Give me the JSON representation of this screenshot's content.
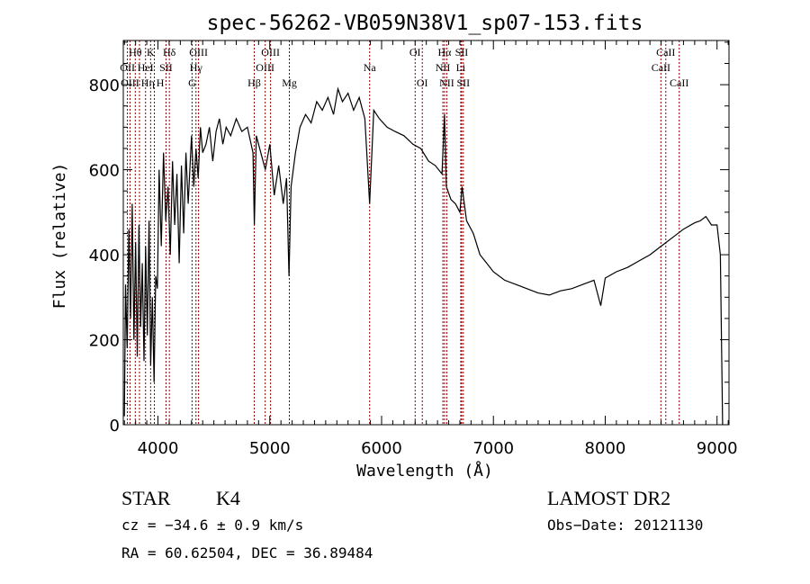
{
  "chart_data": {
    "type": "line",
    "title": "spec-56262-VB059N38V1_sp07-153.fits",
    "xlabel": "Wavelength (Å)",
    "ylabel": "Flux (relative)",
    "xlim": [
      3690,
      9107
    ],
    "ylim": [
      0,
      904
    ],
    "xticks": [
      4000,
      5000,
      6000,
      7000,
      8000,
      9000
    ],
    "yticks": [
      0,
      200,
      400,
      600,
      800
    ],
    "grid": false,
    "line_color": "#000000",
    "marker_color": "#8b0000",
    "series": [
      {
        "name": "spectrum",
        "x": [
          3700,
          3710,
          3725,
          3740,
          3755,
          3770,
          3785,
          3800,
          3815,
          3830,
          3845,
          3860,
          3875,
          3890,
          3905,
          3920,
          3935,
          3950,
          3965,
          3980,
          3995,
          4010,
          4030,
          4050,
          4070,
          4090,
          4110,
          4130,
          4150,
          4170,
          4190,
          4210,
          4230,
          4250,
          4270,
          4300,
          4320,
          4340,
          4360,
          4380,
          4400,
          4430,
          4460,
          4490,
          4520,
          4550,
          4580,
          4610,
          4650,
          4700,
          4750,
          4800,
          4850,
          4862,
          4880,
          4920,
          4960,
          5000,
          5040,
          5080,
          5120,
          5150,
          5172,
          5190,
          5230,
          5270,
          5320,
          5370,
          5420,
          5470,
          5520,
          5570,
          5610,
          5650,
          5700,
          5750,
          5800,
          5850,
          5893,
          5930,
          5980,
          6050,
          6120,
          6200,
          6280,
          6350,
          6420,
          6480,
          6540,
          6563,
          6580,
          6620,
          6660,
          6700,
          6720,
          6760,
          6820,
          6880,
          6940,
          7000,
          7100,
          7200,
          7300,
          7400,
          7500,
          7600,
          7700,
          7800,
          7900,
          7960,
          8000,
          8100,
          8200,
          8300,
          8400,
          8500,
          8600,
          8700,
          8800,
          8850,
          8900,
          8950,
          9000,
          9030,
          9050
        ],
        "y": [
          20,
          330,
          180,
          460,
          250,
          520,
          200,
          430,
          160,
          470,
          230,
          380,
          150,
          420,
          210,
          480,
          140,
          300,
          100,
          350,
          320,
          600,
          420,
          640,
          480,
          560,
          400,
          620,
          470,
          590,
          380,
          610,
          450,
          640,
          520,
          680,
          560,
          650,
          580,
          700,
          640,
          660,
          700,
          620,
          690,
          720,
          660,
          700,
          680,
          720,
          690,
          700,
          640,
          470,
          680,
          640,
          600,
          660,
          540,
          610,
          520,
          580,
          350,
          560,
          640,
          700,
          730,
          710,
          760,
          740,
          770,
          730,
          790,
          760,
          780,
          740,
          770,
          720,
          520,
          740,
          720,
          700,
          690,
          680,
          660,
          650,
          620,
          610,
          590,
          730,
          560,
          530,
          520,
          500,
          560,
          480,
          450,
          400,
          380,
          360,
          340,
          330,
          320,
          310,
          305,
          315,
          320,
          330,
          340,
          280,
          345,
          360,
          370,
          385,
          400,
          420,
          440,
          460,
          475,
          480,
          490,
          470,
          470,
          400,
          0
        ]
      }
    ],
    "line_markers": [
      {
        "label": "Hθ",
        "wavelength": 3797,
        "row": 1
      },
      {
        "label": "K",
        "wavelength": 3934,
        "row": 1
      },
      {
        "label": "Hδ",
        "wavelength": 4102,
        "row": 1
      },
      {
        "label": "OIII",
        "wavelength": 4363,
        "row": 1
      },
      {
        "label": "OIII",
        "wavelength": 5007,
        "row": 1
      },
      {
        "label": "OI",
        "wavelength": 6300,
        "row": 1
      },
      {
        "label": "Hα",
        "wavelength": 6563,
        "row": 1
      },
      {
        "label": "SII",
        "wavelength": 6716,
        "row": 1
      },
      {
        "label": "CaII",
        "wavelength": 8542,
        "row": 1
      },
      {
        "label": "OII",
        "wavelength": 3727,
        "row": 2
      },
      {
        "label": "HeI",
        "wavelength": 3889,
        "row": 2
      },
      {
        "label": "SII",
        "wavelength": 4072,
        "row": 2
      },
      {
        "label": "Hγ",
        "wavelength": 4340,
        "row": 2
      },
      {
        "label": "OIII",
        "wavelength": 4959,
        "row": 2
      },
      {
        "label": "Na",
        "wavelength": 5893,
        "row": 2
      },
      {
        "label": "NII",
        "wavelength": 6548,
        "row": 2
      },
      {
        "label": "Li",
        "wavelength": 6708,
        "row": 2
      },
      {
        "label": "CaII",
        "wavelength": 8498,
        "row": 2
      },
      {
        "label": "OIII",
        "wavelength": 3750,
        "row": 3
      },
      {
        "label": "Hη",
        "wavelength": 3835,
        "row": 3
      },
      {
        "label": "H",
        "wavelength": 3968,
        "row": 3
      },
      {
        "label": "G",
        "wavelength": 4305,
        "row": 3
      },
      {
        "label": "Hβ",
        "wavelength": 4861,
        "row": 3
      },
      {
        "label": "Mg",
        "wavelength": 5175,
        "row": 3
      },
      {
        "label": "OI",
        "wavelength": 6364,
        "row": 3
      },
      {
        "label": "NII",
        "wavelength": 6583,
        "row": 3
      },
      {
        "label": "SII",
        "wavelength": 6731,
        "row": 3
      },
      {
        "label": "CaII",
        "wavelength": 8662,
        "row": 3
      }
    ]
  },
  "info": {
    "object_class": "STAR",
    "subclass": "K4",
    "survey": "LAMOST DR2",
    "redshift": "cz = −34.6 ± 0.9 km/s",
    "obs_date": "Obs−Date: 20121130",
    "coords": "RA =  60.62504, DEC =  36.89484"
  }
}
